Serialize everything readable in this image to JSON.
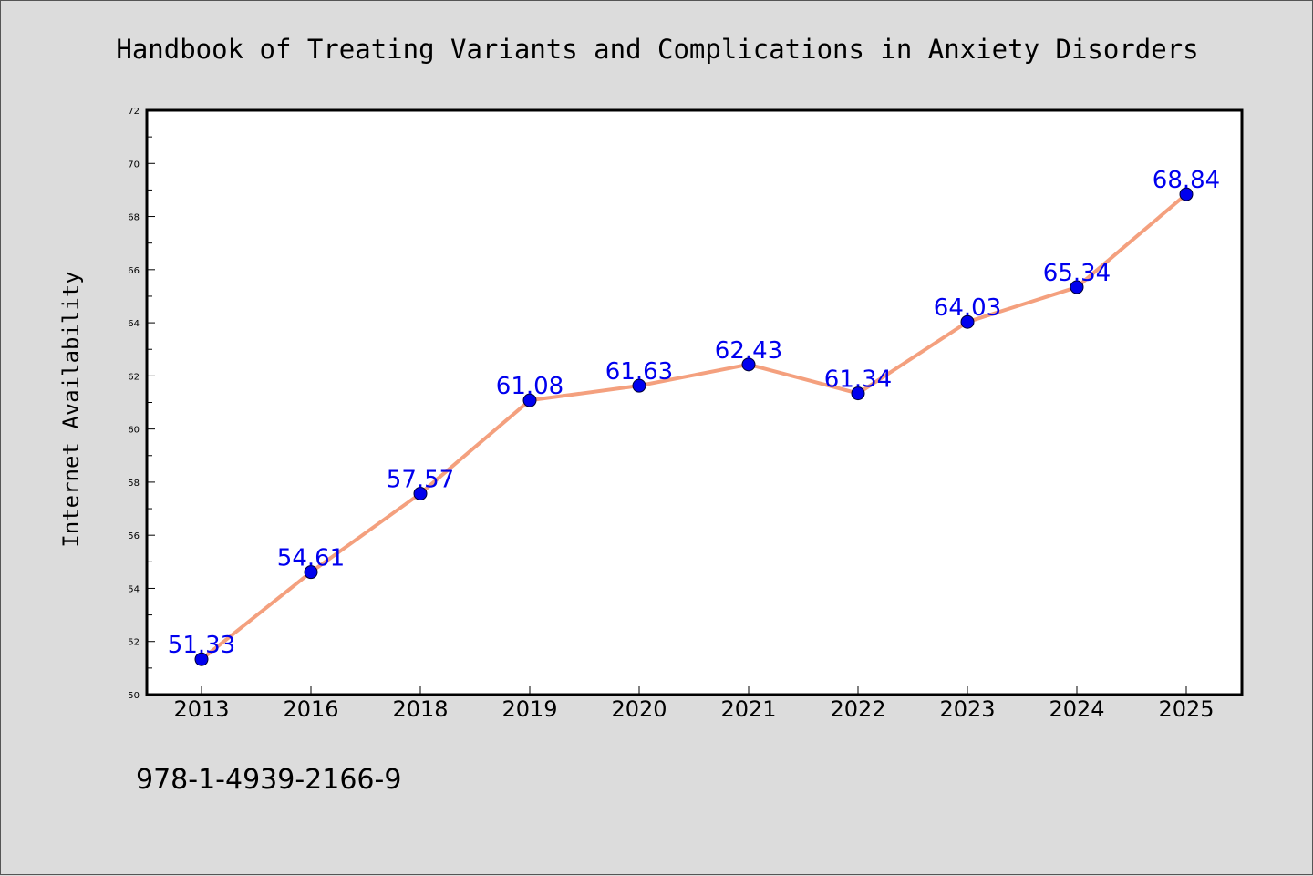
{
  "chart_data": {
    "type": "line",
    "title": "Handbook of Treating Variants and Complications in Anxiety Disorders",
    "xlabel": "",
    "ylabel": "Internet Availability",
    "categories": [
      "2013",
      "2016",
      "2018",
      "2019",
      "2020",
      "2021",
      "2022",
      "2023",
      "2024",
      "2025"
    ],
    "series": [
      {
        "values": [
          51.33,
          54.61,
          57.57,
          61.08,
          61.63,
          62.43,
          61.34,
          64.03,
          65.34,
          68.84
        ]
      }
    ],
    "data_labels": [
      "51.33",
      "54.61",
      "57.57",
      "61.08",
      "61.63",
      "62.43",
      "61.34",
      "64.03",
      "65.34",
      "68.84"
    ],
    "ylim": [
      50,
      72
    ],
    "yticks": [
      "50",
      "52",
      "54",
      "56",
      "58",
      "60",
      "62",
      "64",
      "66",
      "68",
      "70",
      "72"
    ],
    "grid": false,
    "legend": "none",
    "colors": {
      "line": "#f4a07e",
      "marker": "#0000ee",
      "label": "#0000ee",
      "background": "#dcdcdc",
      "plot_area": "#ffffff"
    }
  },
  "footer": {
    "isbn": "978-1-4939-2166-9"
  }
}
